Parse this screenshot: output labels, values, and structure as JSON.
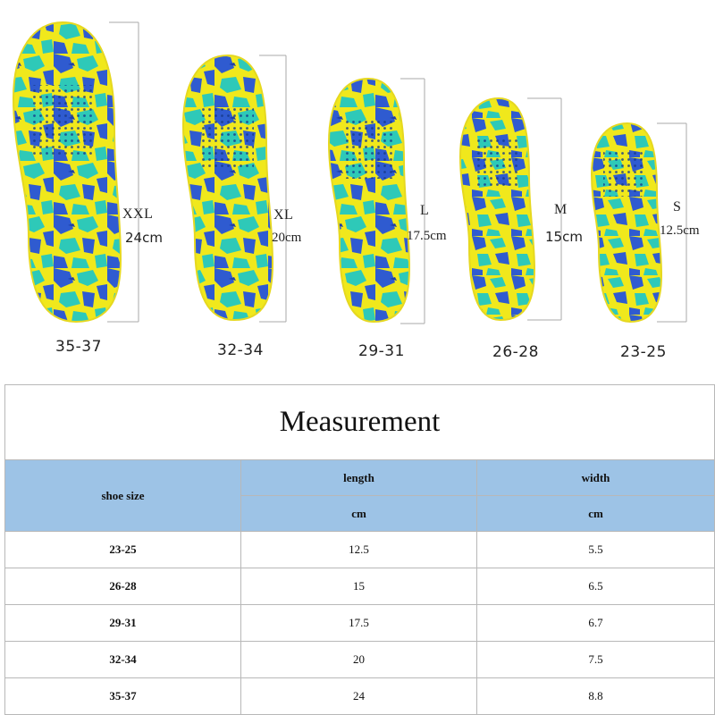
{
  "insoles": [
    {
      "size": "XXL",
      "length": "24cm",
      "range": "35-37"
    },
    {
      "size": "XL",
      "length": "20cm",
      "range": "32-34"
    },
    {
      "size": "L",
      "length": "17.5cm",
      "range": "29-31"
    },
    {
      "size": "M",
      "length": "15cm",
      "range": "26-28"
    },
    {
      "size": "S",
      "length": "12.5cm",
      "range": "23-25"
    }
  ],
  "colors": {
    "insole_yellow": "#f0e81c",
    "insole_blue": "#2f5bd0",
    "insole_teal": "#2ec9b8",
    "header_fill": "#9dc3e6"
  },
  "table": {
    "title": "Measurement",
    "col_shoe_size": "shoe size",
    "col_length": "length",
    "col_width": "width",
    "unit_length": "cm",
    "unit_width": "cm",
    "rows": [
      {
        "size": "23-25",
        "length": "12.5",
        "width": "5.5"
      },
      {
        "size": "26-28",
        "length": "15",
        "width": "6.5"
      },
      {
        "size": "29-31",
        "length": "17.5",
        "width": "6.7"
      },
      {
        "size": "32-34",
        "length": "20",
        "width": "7.5"
      },
      {
        "size": "35-37",
        "length": "24",
        "width": "8.8"
      }
    ]
  }
}
